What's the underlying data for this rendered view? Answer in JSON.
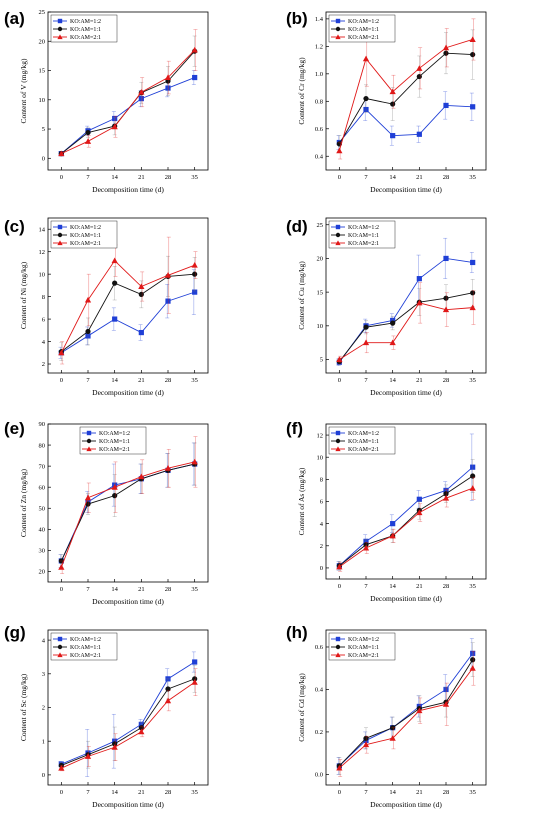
{
  "chart_data": [
    {
      "type": "line",
      "panel_label": "(a)",
      "xlabel": "Decomposition time (d)",
      "ylabel": "Content of V (mg/kg)",
      "x": [
        0,
        7,
        14,
        21,
        28,
        35
      ],
      "ylim": [
        -2,
        25
      ],
      "yticks": [
        0,
        5,
        10,
        15,
        20,
        25
      ],
      "legend_position": "top-left",
      "series": [
        {
          "name": "KO:AM=1:2",
          "color": "#1f3fd6",
          "marker": "square",
          "values": [
            0.8,
            4.7,
            6.8,
            10.2,
            12.0,
            13.8
          ],
          "errors": [
            0.3,
            0.8,
            1.2,
            1.4,
            1.5,
            1.2
          ]
        },
        {
          "name": "KO:AM=1:1",
          "color": "#111111",
          "marker": "circle",
          "values": [
            0.8,
            4.4,
            5.5,
            11.2,
            13.2,
            18.3
          ],
          "errors": [
            0.3,
            0.8,
            1.5,
            1.8,
            2.5,
            2.6
          ]
        },
        {
          "name": "KO:AM=2:1",
          "color": "#e01818",
          "marker": "triangle",
          "values": [
            0.8,
            2.9,
            5.4,
            11.3,
            13.8,
            18.5
          ],
          "errors": [
            0.3,
            1.0,
            1.8,
            2.5,
            2.8,
            3.5
          ]
        }
      ]
    },
    {
      "type": "line",
      "panel_label": "(b)",
      "xlabel": "Decomposition time (d)",
      "ylabel": "Content of Cr (mg/kg)",
      "x": [
        0,
        7,
        14,
        21,
        28,
        35
      ],
      "ylim": [
        0.3,
        1.45
      ],
      "yticks": [
        0.4,
        0.6,
        0.8,
        1.0,
        1.2,
        1.4
      ],
      "legend_position": "top-left",
      "series": [
        {
          "name": "KO:AM=1:2",
          "color": "#1f3fd6",
          "marker": "square",
          "values": [
            0.5,
            0.74,
            0.55,
            0.56,
            0.77,
            0.76
          ],
          "errors": [
            0.05,
            0.08,
            0.07,
            0.06,
            0.1,
            0.1
          ]
        },
        {
          "name": "KO:AM=1:1",
          "color": "#111111",
          "marker": "circle",
          "values": [
            0.49,
            0.82,
            0.78,
            0.98,
            1.15,
            1.14
          ],
          "errors": [
            0.06,
            0.1,
            0.12,
            0.15,
            0.15,
            0.18
          ]
        },
        {
          "name": "KO:AM=2:1",
          "color": "#e01818",
          "marker": "triangle",
          "values": [
            0.44,
            1.11,
            0.87,
            1.04,
            1.19,
            1.25
          ],
          "errors": [
            0.06,
            0.2,
            0.12,
            0.15,
            0.14,
            0.15
          ]
        }
      ]
    },
    {
      "type": "line",
      "panel_label": "(c)",
      "xlabel": "Decomposition time (d)",
      "ylabel": "Content of Ni (mg/kg)",
      "x": [
        0,
        7,
        14,
        21,
        28,
        35
      ],
      "ylim": [
        1.2,
        15
      ],
      "yticks": [
        2,
        4,
        6,
        8,
        10,
        12,
        14
      ],
      "legend_position": "top-left",
      "series": [
        {
          "name": "KO:AM=1:2",
          "color": "#1f3fd6",
          "marker": "square",
          "values": [
            3.0,
            4.5,
            6.0,
            4.8,
            7.6,
            8.4
          ],
          "errors": [
            0.5,
            0.8,
            1.0,
            0.7,
            1.5,
            2.0
          ]
        },
        {
          "name": "KO:AM=1:1",
          "color": "#111111",
          "marker": "circle",
          "values": [
            3.1,
            4.9,
            9.2,
            8.2,
            9.8,
            10.0
          ],
          "errors": [
            0.8,
            1.2,
            1.5,
            1.2,
            1.8,
            1.5
          ]
        },
        {
          "name": "KO:AM=2:1",
          "color": "#e01818",
          "marker": "triangle",
          "values": [
            3.0,
            7.7,
            11.2,
            8.9,
            9.9,
            10.8
          ],
          "errors": [
            1.0,
            2.3,
            1.4,
            1.3,
            3.4,
            1.2
          ]
        }
      ]
    },
    {
      "type": "line",
      "panel_label": "(d)",
      "xlabel": "Decomposition time (d)",
      "ylabel": "Content of Cu (mg/kg)",
      "x": [
        0,
        7,
        14,
        21,
        28,
        35
      ],
      "ylim": [
        3,
        26
      ],
      "yticks": [
        5,
        10,
        15,
        20,
        25
      ],
      "legend_position": "top-left",
      "series": [
        {
          "name": "KO:AM=1:2",
          "color": "#1f3fd6",
          "marker": "square",
          "values": [
            4.6,
            10.0,
            10.8,
            17.0,
            20.0,
            19.4
          ],
          "errors": [
            0.5,
            1.0,
            1.0,
            3.5,
            3.0,
            1.5
          ]
        },
        {
          "name": "KO:AM=1:1",
          "color": "#111111",
          "marker": "circle",
          "values": [
            4.7,
            9.8,
            10.4,
            13.5,
            14.1,
            14.9
          ],
          "errors": [
            0.5,
            1.0,
            1.0,
            2.0,
            2.0,
            2.0
          ]
        },
        {
          "name": "KO:AM=2:1",
          "color": "#e01818",
          "marker": "triangle",
          "values": [
            5.0,
            7.5,
            7.5,
            13.4,
            12.4,
            12.7
          ],
          "errors": [
            0.5,
            1.5,
            1.0,
            3.0,
            2.5,
            2.5
          ]
        }
      ]
    },
    {
      "type": "line",
      "panel_label": "(e)",
      "xlabel": "Decomposition time (d)",
      "ylabel": "Content of Zn (mg/kg)",
      "x": [
        0,
        7,
        14,
        21,
        28,
        35
      ],
      "ylim": [
        15,
        90
      ],
      "yticks": [
        20,
        30,
        40,
        50,
        60,
        70,
        80,
        90
      ],
      "legend_position": "top-center",
      "series": [
        {
          "name": "KO:AM=1:2",
          "color": "#1f3fd6",
          "marker": "square",
          "values": [
            25,
            53,
            61,
            64,
            68,
            71
          ],
          "errors": [
            3,
            5,
            10,
            7,
            8,
            10
          ]
        },
        {
          "name": "KO:AM=1:1",
          "color": "#111111",
          "marker": "circle",
          "values": [
            25,
            52,
            56,
            64,
            68,
            71
          ],
          "errors": [
            3,
            5,
            10,
            7,
            8,
            10
          ]
        },
        {
          "name": "KO:AM=2:1",
          "color": "#e01818",
          "marker": "triangle",
          "values": [
            22,
            55,
            60,
            65,
            69,
            72
          ],
          "errors": [
            3,
            7,
            12,
            8,
            9,
            12
          ]
        }
      ]
    },
    {
      "type": "line",
      "panel_label": "(f)",
      "xlabel": "Decomposition time (d)",
      "ylabel": "Content of As (mg/kg)",
      "x": [
        0,
        7,
        14,
        21,
        28,
        35
      ],
      "ylim": [
        -1,
        13
      ],
      "yticks": [
        0,
        2,
        4,
        6,
        8,
        10,
        12
      ],
      "legend_position": "top-left",
      "series": [
        {
          "name": "KO:AM=1:2",
          "color": "#1f3fd6",
          "marker": "square",
          "values": [
            0.2,
            2.4,
            4.0,
            6.2,
            7.0,
            9.1
          ],
          "errors": [
            0.4,
            0.6,
            0.8,
            0.8,
            0.8,
            3.0
          ]
        },
        {
          "name": "KO:AM=1:1",
          "color": "#111111",
          "marker": "circle",
          "values": [
            0.2,
            2.1,
            2.9,
            5.2,
            6.7,
            8.3
          ],
          "errors": [
            0.4,
            0.5,
            0.6,
            0.8,
            0.8,
            1.5
          ]
        },
        {
          "name": "KO:AM=2:1",
          "color": "#e01818",
          "marker": "triangle",
          "values": [
            0.1,
            1.8,
            2.9,
            5.0,
            6.3,
            7.2
          ],
          "errors": [
            0.4,
            0.5,
            0.6,
            0.8,
            0.8,
            1.0
          ]
        }
      ]
    },
    {
      "type": "line",
      "panel_label": "(g)",
      "xlabel": "Decomposition time (d)",
      "ylabel": "Content of Sc (mg/kg)",
      "x": [
        0,
        7,
        14,
        21,
        28,
        35
      ],
      "ylim": [
        -0.3,
        4.3
      ],
      "yticks": [
        0,
        1,
        2,
        3,
        4
      ],
      "legend_position": "top-left",
      "series": [
        {
          "name": "KO:AM=1:2",
          "color": "#1f3fd6",
          "marker": "square",
          "values": [
            0.32,
            0.65,
            1.0,
            1.5,
            2.85,
            3.35
          ],
          "errors": [
            0.08,
            0.7,
            0.8,
            0.15,
            0.3,
            0.3
          ]
        },
        {
          "name": "KO:AM=1:1",
          "color": "#111111",
          "marker": "circle",
          "values": [
            0.28,
            0.6,
            0.92,
            1.4,
            2.55,
            2.85
          ],
          "errors": [
            0.08,
            0.4,
            0.5,
            0.15,
            0.3,
            0.4
          ]
        },
        {
          "name": "KO:AM=2:1",
          "color": "#e01818",
          "marker": "triangle",
          "values": [
            0.2,
            0.55,
            0.82,
            1.28,
            2.2,
            2.75
          ],
          "errors": [
            0.08,
            0.3,
            0.4,
            0.15,
            0.3,
            0.4
          ]
        }
      ]
    },
    {
      "type": "line",
      "panel_label": "(h)",
      "xlabel": "Decomposition time (d)",
      "ylabel": "Content of Cd (mg/kg)",
      "x": [
        0,
        7,
        14,
        21,
        28,
        35
      ],
      "ylim": [
        -0.05,
        0.68
      ],
      "yticks": [
        0.0,
        0.2,
        0.4,
        0.6
      ],
      "legend_position": "top-left",
      "series": [
        {
          "name": "KO:AM=1:2",
          "color": "#1f3fd6",
          "marker": "square",
          "values": [
            0.04,
            0.16,
            0.22,
            0.32,
            0.4,
            0.57
          ],
          "errors": [
            0.04,
            0.04,
            0.05,
            0.05,
            0.07,
            0.07
          ]
        },
        {
          "name": "KO:AM=1:1",
          "color": "#111111",
          "marker": "circle",
          "values": [
            0.04,
            0.17,
            0.22,
            0.31,
            0.34,
            0.54
          ],
          "errors": [
            0.04,
            0.05,
            0.05,
            0.06,
            0.07,
            0.08
          ]
        },
        {
          "name": "KO:AM=2:1",
          "color": "#e01818",
          "marker": "triangle",
          "values": [
            0.03,
            0.14,
            0.17,
            0.3,
            0.33,
            0.5
          ],
          "errors": [
            0.04,
            0.04,
            0.05,
            0.06,
            0.1,
            0.08
          ]
        }
      ]
    }
  ]
}
